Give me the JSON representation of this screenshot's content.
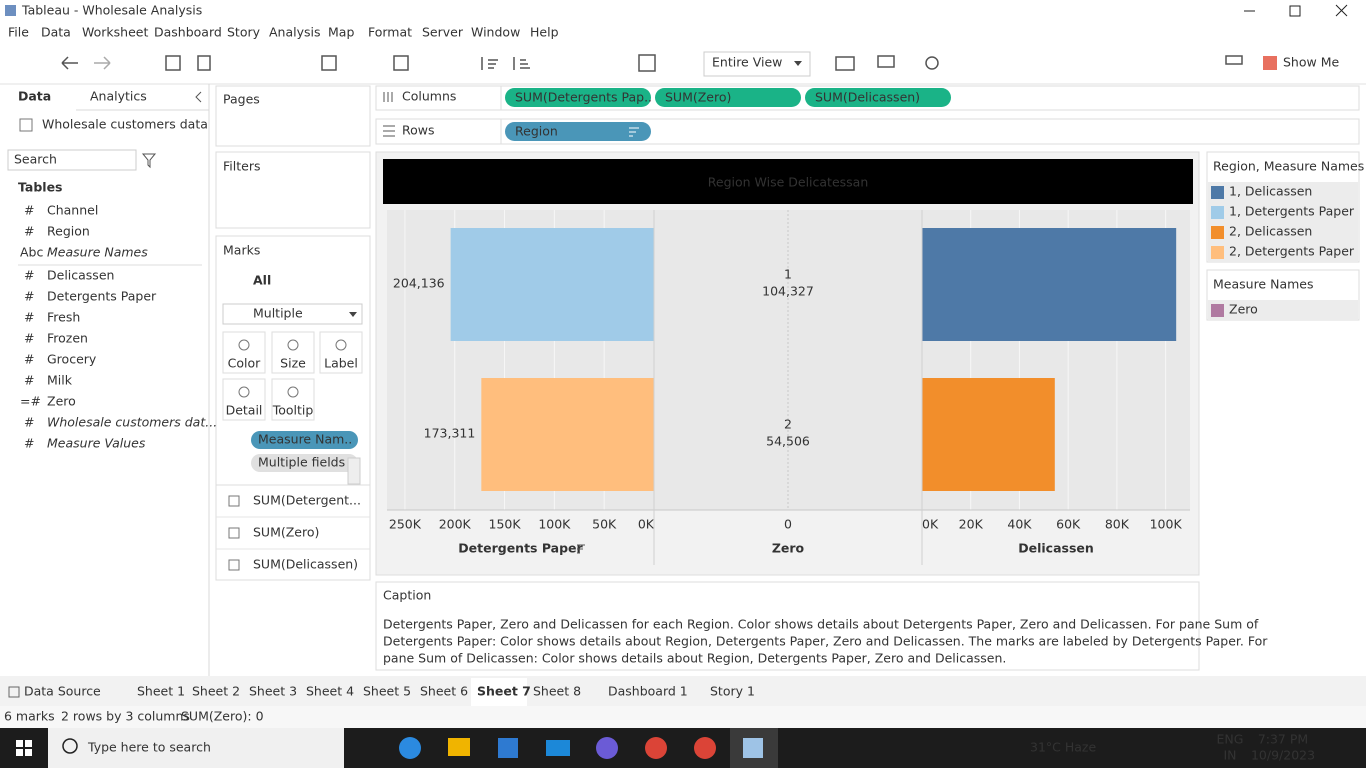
{
  "window": {
    "title": "Tableau - Wholesale Analysis"
  },
  "menu": [
    "File",
    "Data",
    "Worksheet",
    "Dashboard",
    "Story",
    "Analysis",
    "Map",
    "Format",
    "Server",
    "Window",
    "Help"
  ],
  "toolbar": {
    "fit": "Entire View",
    "show_me": "Show Me"
  },
  "side_pane": {
    "tabs": [
      "Data",
      "Analytics"
    ],
    "data_source": "Wholesale customers data",
    "search": "Search",
    "tables_heading": "Tables",
    "fields": [
      {
        "icon": "#",
        "name": "Channel"
      },
      {
        "icon": "#",
        "name": "Region"
      },
      {
        "icon": "Abc",
        "name": "Measure Names",
        "italic": true
      },
      {
        "icon": "#",
        "name": "Delicassen"
      },
      {
        "icon": "#",
        "name": "Detergents Paper"
      },
      {
        "icon": "#",
        "name": "Fresh"
      },
      {
        "icon": "#",
        "name": "Frozen"
      },
      {
        "icon": "#",
        "name": "Grocery"
      },
      {
        "icon": "#",
        "name": "Milk"
      },
      {
        "icon": "=#",
        "name": "Zero"
      },
      {
        "icon": "#",
        "name": "Wholesale customers dat...",
        "italic": true
      },
      {
        "icon": "#",
        "name": "Measure Values",
        "italic": true
      }
    ]
  },
  "cards": {
    "pages": "Pages",
    "filters": "Filters"
  },
  "marks": {
    "title": "Marks",
    "all": "All",
    "mark_type": "Multiple",
    "buttons": [
      "Color",
      "Size",
      "Label",
      "Detail",
      "Tooltip"
    ],
    "pills": [
      "Measure Nam..",
      "Multiple fields"
    ],
    "measures": [
      "SUM(Detergent...",
      "SUM(Zero)",
      "SUM(Delicassen)"
    ]
  },
  "shelves": {
    "columns_label": "Columns",
    "columns": [
      "SUM(Detergents Pap..",
      "SUM(Zero)",
      "SUM(Delicassen)"
    ],
    "rows_label": "Rows",
    "rows": [
      "Region"
    ]
  },
  "chart": {
    "type": "bar",
    "title": "Region Wise Delicatessan",
    "categories": [
      "1",
      "2"
    ],
    "panes": [
      {
        "field": "Detergents Paper",
        "mark": "bar",
        "values": [
          204136,
          173311
        ],
        "value_labels": [
          "204,136",
          "173,311"
        ],
        "colors": [
          "#a0cbe8",
          "#ffbe7d"
        ],
        "xlim": [
          268000,
          0
        ],
        "xticks": [
          {
            "value": 250000,
            "label": "250K"
          },
          {
            "value": 200000,
            "label": "200K"
          },
          {
            "value": 150000,
            "label": "150K"
          },
          {
            "value": 100000,
            "label": "100K"
          },
          {
            "value": 50000,
            "label": "50K"
          },
          {
            "value": 0,
            "label": "0K"
          }
        ]
      },
      {
        "field": "Zero",
        "mark": "text",
        "values": [
          0,
          0
        ],
        "colors": [
          "#b07aa1",
          "#b07aa1"
        ],
        "xlim": [
          -1,
          1
        ],
        "xticks": [
          0
        ]
      },
      {
        "field": "Delicassen",
        "mark": "bar",
        "values": [
          104327,
          54506
        ],
        "value_labels": [
          "104,327",
          "54,506"
        ],
        "colors": [
          "#4e79a7",
          "#f28e2b"
        ],
        "xlim": [
          0,
          110000
        ],
        "xticks": [
          {
            "value": 0,
            "label": "0K"
          },
          {
            "value": 20000,
            "label": "20K"
          },
          {
            "value": 40000,
            "label": "40K"
          },
          {
            "value": 60000,
            "label": "60K"
          },
          {
            "value": 80000,
            "label": "80K"
          },
          {
            "value": 100000,
            "label": "100K"
          }
        ]
      }
    ],
    "grid": true
  },
  "legends": [
    {
      "title": "Region, Measure Names",
      "items": [
        {
          "label": "1, Delicassen",
          "color": "#4e79a7"
        },
        {
          "label": "1, Detergents Paper",
          "color": "#a0cbe8"
        },
        {
          "label": "2, Delicassen",
          "color": "#f28e2b"
        },
        {
          "label": "2, Detergents Paper",
          "color": "#ffbe7d"
        }
      ]
    },
    {
      "title": "Measure Names",
      "items": [
        {
          "label": "Zero",
          "color": "#b07aa1"
        }
      ]
    }
  ],
  "caption": {
    "title": "Caption",
    "lines": [
      "Detergents Paper, Zero and Delicassen for each Region.  Color shows details about Detergents Paper, Zero and Delicassen.  For pane Sum of",
      "Detergents Paper:  Color shows details about Region, Detergents Paper, Zero and Delicassen.  The marks are labeled by Detergents Paper.  For",
      "pane Sum of Delicassen:  Color shows details about Region, Detergents Paper, Zero and Delicassen."
    ]
  },
  "sheet_tabs": {
    "data_source": "Data Source",
    "tabs": [
      "Sheet 1",
      "Sheet 2",
      "Sheet 3",
      "Sheet 4",
      "Sheet 5",
      "Sheet 6",
      "Sheet 7",
      "Sheet 8",
      "Dashboard 1",
      "Story 1"
    ],
    "active": 6
  },
  "status": [
    "6 marks",
    "2 rows by 3 columns",
    "SUM(Zero): 0"
  ],
  "taskbar": {
    "search": "Type here to search",
    "weather": "31°C  Haze",
    "lang": [
      "ENG",
      "IN"
    ],
    "time": "7:37 PM",
    "date": "10/9/2023"
  }
}
